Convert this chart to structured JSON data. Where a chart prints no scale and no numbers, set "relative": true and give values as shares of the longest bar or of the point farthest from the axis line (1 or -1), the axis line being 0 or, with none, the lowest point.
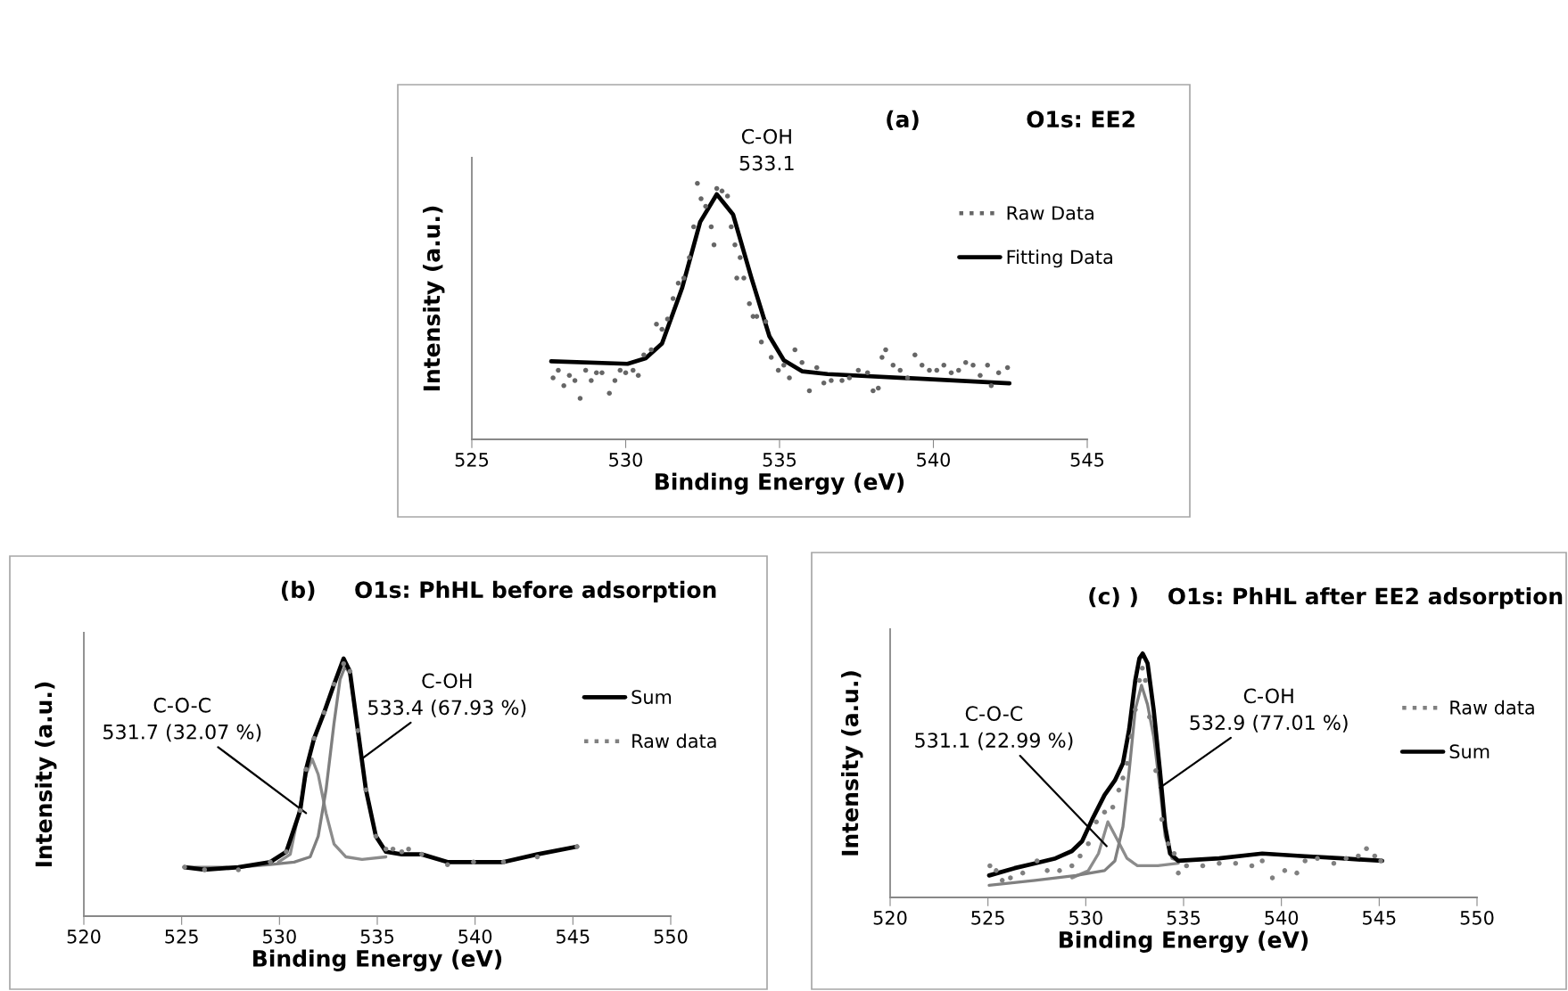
{
  "chart_data": [
    {
      "type": "line",
      "title": "(a)",
      "subtitle": "O1s: EE2",
      "xlabel": "Binding Energy (eV)",
      "ylabel": "Intensity (a.u.)",
      "relative": true,
      "xlim": [
        525,
        545
      ],
      "xticks": [
        525,
        530,
        535,
        540,
        545
      ],
      "tick_labels": "x",
      "grid": false,
      "legend": "right",
      "annotations": [
        {
          "text": "C-OH\n533.1",
          "x": 533.1,
          "y": 0.96
        }
      ],
      "series": [
        {
          "name": "Raw Data",
          "type": "scatter",
          "marker": "circle",
          "color": "#666666",
          "x": [
            527.64,
            527.81,
            527.99,
            528.17,
            528.35,
            528.52,
            528.7,
            528.88,
            529.05,
            529.23,
            529.47,
            529.65,
            529.82,
            530.0,
            530.24,
            530.41,
            530.59,
            530.83,
            531.0,
            531.18,
            531.36,
            531.54,
            531.71,
            531.89,
            532.07,
            532.21,
            532.33,
            532.45,
            532.6,
            532.78,
            532.87,
            532.96,
            533.13,
            533.31,
            533.43,
            533.55,
            533.61,
            533.72,
            533.84,
            534.02,
            534.14,
            534.26,
            534.41,
            534.55,
            534.73,
            534.96,
            535.14,
            535.32,
            535.5,
            535.73,
            535.97,
            536.21,
            536.44,
            536.68,
            537.03,
            537.27,
            537.56,
            537.86,
            538.04,
            538.21,
            538.33,
            538.45,
            538.69,
            538.92,
            539.16,
            539.4,
            539.63,
            539.87,
            540.11,
            540.34,
            540.58,
            540.82,
            541.05,
            541.29,
            541.52,
            541.76,
            541.88,
            542.12,
            542.41
          ],
          "values": [
            0.24,
            0.27,
            0.21,
            0.25,
            0.23,
            0.16,
            0.27,
            0.23,
            0.26,
            0.26,
            0.18,
            0.23,
            0.27,
            0.26,
            0.27,
            0.25,
            0.33,
            0.35,
            0.45,
            0.43,
            0.47,
            0.55,
            0.61,
            0.63,
            0.71,
            0.83,
            1.0,
            0.94,
            0.91,
            0.83,
            0.76,
            0.98,
            0.97,
            0.95,
            0.83,
            0.76,
            0.63,
            0.71,
            0.63,
            0.53,
            0.48,
            0.48,
            0.38,
            0.46,
            0.32,
            0.27,
            0.29,
            0.24,
            0.35,
            0.3,
            0.19,
            0.28,
            0.22,
            0.23,
            0.23,
            0.24,
            0.27,
            0.26,
            0.19,
            0.2,
            0.32,
            0.35,
            0.29,
            0.27,
            0.24,
            0.33,
            0.29,
            0.27,
            0.27,
            0.29,
            0.26,
            0.27,
            0.3,
            0.29,
            0.25,
            0.29,
            0.21,
            0.26,
            0.28
          ]
        },
        {
          "name": "Fitting Data",
          "type": "line",
          "color": "#000000",
          "x": [
            527.58,
            530.06,
            530.65,
            531.18,
            531.83,
            532.42,
            532.96,
            533.49,
            534.08,
            534.67,
            535.14,
            535.73,
            536.56,
            542.47
          ],
          "values": [
            0.305,
            0.295,
            0.317,
            0.374,
            0.59,
            0.849,
            0.957,
            0.878,
            0.633,
            0.403,
            0.309,
            0.266,
            0.255,
            0.219
          ]
        }
      ]
    },
    {
      "type": "line",
      "title": "(b)",
      "subtitle": "O1s: PhHL before adsorption",
      "xlabel": "Binding Energy (eV)",
      "ylabel": "Intensity (a.u.)",
      "relative": true,
      "xlim": [
        520,
        550
      ],
      "xticks": [
        520,
        525,
        530,
        535,
        540,
        545,
        550
      ],
      "tick_labels": "x",
      "grid": false,
      "legend": "right",
      "annotations": [
        {
          "text": "C-O-C\n531.7 (32.07 %)",
          "x": 531.36,
          "y": 0.4
        },
        {
          "text": "C-OH\n533.4 (67.93 %)",
          "x": 534.2,
          "y": 0.61
        }
      ],
      "series": [
        {
          "type": "line",
          "color": "#8c8c8c",
          "x": [
            529.94,
            530.55,
            531.06,
            531.36,
            531.67,
            531.98,
            532.38,
            532.79,
            533.4,
            534.22,
            535.44
          ],
          "values": [
            0.21,
            0.24,
            0.43,
            0.55,
            0.61,
            0.55,
            0.4,
            0.28,
            0.23,
            0.22,
            0.23
          ]
        },
        {
          "type": "line",
          "color": "#7f7f7f",
          "x": [
            525.15,
            527.9,
            529.53,
            530.75,
            531.57,
            531.98,
            532.38,
            532.79,
            533.1,
            533.36,
            533.6,
            534.01,
            534.42,
            534.93,
            535.44,
            536.25,
            537.27,
            538.59,
            539.92,
            541.45,
            543.18,
            545.21
          ],
          "values": [
            0.19,
            0.19,
            0.2,
            0.21,
            0.23,
            0.31,
            0.49,
            0.75,
            0.92,
            0.97,
            0.94,
            0.72,
            0.49,
            0.31,
            0.25,
            0.24,
            0.24,
            0.21,
            0.21,
            0.21,
            0.24,
            0.27
          ]
        },
        {
          "name": "Sum",
          "type": "line",
          "color": "#000000",
          "x": [
            525.15,
            526.17,
            527.9,
            529.53,
            530.35,
            531.06,
            531.36,
            531.77,
            532.28,
            532.79,
            533.28,
            533.6,
            534.01,
            534.42,
            534.93,
            535.44,
            536.25,
            537.27,
            538.59,
            539.92,
            541.45,
            543.18,
            545.21
          ],
          "values": [
            0.19,
            0.18,
            0.19,
            0.21,
            0.25,
            0.41,
            0.57,
            0.69,
            0.79,
            0.9,
            1.0,
            0.95,
            0.72,
            0.49,
            0.31,
            0.25,
            0.24,
            0.24,
            0.21,
            0.21,
            0.21,
            0.24,
            0.27
          ]
        },
        {
          "name": "Raw data",
          "type": "scatter",
          "marker": "circle",
          "color": "#808080",
          "x": [
            525.15,
            526.17,
            527.9,
            529.53,
            530.35,
            531.06,
            531.36,
            531.77,
            532.28,
            532.79,
            533.28,
            533.6,
            534.01,
            534.42,
            534.93,
            535.44,
            535.8,
            536.25,
            536.6,
            537.27,
            538.59,
            539.92,
            541.45,
            543.18,
            545.21
          ],
          "values": [
            0.19,
            0.18,
            0.18,
            0.21,
            0.25,
            0.41,
            0.57,
            0.69,
            0.79,
            0.9,
            0.98,
            0.95,
            0.72,
            0.49,
            0.31,
            0.26,
            0.26,
            0.25,
            0.26,
            0.24,
            0.2,
            0.21,
            0.21,
            0.23,
            0.27
          ]
        }
      ]
    },
    {
      "type": "line",
      "title": "(c) )",
      "subtitle": "O1s: PhHL after EE2 adsorption",
      "xlabel": "Binding Energy (eV)",
      "ylabel": "Intensity (a.u.)",
      "relative": true,
      "xlim": [
        520,
        550
      ],
      "xticks": [
        520,
        525,
        530,
        535,
        540,
        545,
        550
      ],
      "tick_labels": "x",
      "grid": false,
      "legend": "right",
      "annotations": [
        {
          "text": "C-O-C\n531.1 (22.99 %)",
          "x": 531.07,
          "y": 0.21
        },
        {
          "text": "C-OH\n532.9 (77.01 %)",
          "x": 533.79,
          "y": 0.45
        }
      ],
      "series": [
        {
          "name": "Raw data",
          "type": "scatter",
          "marker": "circle",
          "color": "#808080",
          "x": [
            525.1,
            525.42,
            525.73,
            526.15,
            526.78,
            527.51,
            528.03,
            528.66,
            529.29,
            529.71,
            530.13,
            530.54,
            530.96,
            531.38,
            531.69,
            531.9,
            532.11,
            532.32,
            532.53,
            532.74,
            532.89,
            533.05,
            533.26,
            533.58,
            533.89,
            534.21,
            534.52,
            534.73,
            535.15,
            535.98,
            536.82,
            537.66,
            538.49,
            539.02,
            539.54,
            540.17,
            540.79,
            541.21,
            541.84,
            542.68,
            543.31,
            543.93,
            544.35,
            544.77,
            545.08
          ],
          "values": [
            0.13,
            0.11,
            0.07,
            0.08,
            0.1,
            0.15,
            0.11,
            0.11,
            0.13,
            0.17,
            0.22,
            0.31,
            0.35,
            0.37,
            0.44,
            0.49,
            0.55,
            0.66,
            0.77,
            0.89,
            0.94,
            0.89,
            0.74,
            0.52,
            0.32,
            0.22,
            0.18,
            0.1,
            0.13,
            0.13,
            0.14,
            0.14,
            0.13,
            0.15,
            0.08,
            0.11,
            0.1,
            0.15,
            0.16,
            0.14,
            0.16,
            0.17,
            0.2,
            0.17,
            0.15
          ]
        },
        {
          "type": "line",
          "color": "#8c8c8c",
          "x": [
            529.29,
            530.13,
            530.65,
            531.13,
            531.59,
            532.11,
            532.64,
            533.68,
            534.73
          ],
          "values": [
            0.08,
            0.11,
            0.18,
            0.31,
            0.24,
            0.16,
            0.13,
            0.13,
            0.14
          ]
        },
        {
          "type": "line",
          "color": "#808080",
          "x": [
            525.06,
            527.41,
            529.5,
            530.96,
            531.49,
            531.9,
            532.22,
            532.53,
            532.85,
            533.16,
            533.47,
            533.79,
            534.06,
            534.41,
            534.73,
            536.82,
            539.02,
            541.0,
            543.1,
            545.15
          ],
          "values": [
            0.05,
            0.07,
            0.09,
            0.11,
            0.15,
            0.29,
            0.52,
            0.77,
            0.87,
            0.79,
            0.66,
            0.45,
            0.25,
            0.16,
            0.15,
            0.16,
            0.18,
            0.17,
            0.16,
            0.15
          ]
        },
        {
          "name": "Sum",
          "type": "line",
          "color": "#000000",
          "x": [
            525.06,
            526.36,
            527.41,
            528.45,
            529.29,
            529.81,
            530.33,
            530.96,
            531.49,
            531.9,
            532.22,
            532.53,
            532.74,
            532.91,
            533.16,
            533.47,
            533.79,
            534.06,
            534.31,
            534.73,
            536.82,
            539.02,
            541.0,
            543.1,
            545.15
          ],
          "values": [
            0.09,
            0.12,
            0.14,
            0.16,
            0.19,
            0.23,
            0.32,
            0.42,
            0.48,
            0.55,
            0.69,
            0.89,
            0.98,
            1.0,
            0.96,
            0.77,
            0.52,
            0.29,
            0.18,
            0.15,
            0.16,
            0.18,
            0.17,
            0.16,
            0.15
          ]
        }
      ]
    }
  ]
}
